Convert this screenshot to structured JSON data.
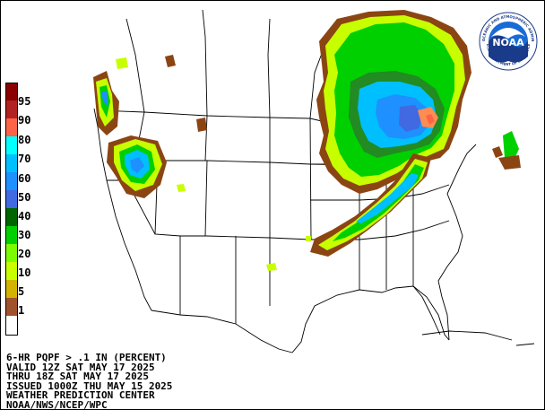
{
  "legend": {
    "items": [
      {
        "label": "95",
        "color": "#8b0000"
      },
      {
        "label": "",
        "color": "#b22222"
      },
      {
        "label": "90",
        "color": "#ff6347"
      },
      {
        "label": "",
        "color": "#ffa07a"
      },
      {
        "label": "80",
        "color": "#00ffff"
      },
      {
        "label": "",
        "color": "#00bfff"
      },
      {
        "label": "60",
        "color": "#1e90ff"
      },
      {
        "label": "50",
        "color": "#4169e1"
      },
      {
        "label": "",
        "color": "#1a5fa8"
      },
      {
        "label": "40",
        "color": "#006400"
      },
      {
        "label": "",
        "color": "#228b22"
      },
      {
        "label": "30",
        "color": "#32cd32"
      },
      {
        "label": "20",
        "color": "#00d000"
      },
      {
        "label": "",
        "color": "#7cfc00"
      },
      {
        "label": "10",
        "color": "#c8ff00"
      },
      {
        "label": "",
        "color": "#ffff00"
      },
      {
        "label": "5",
        "color": "#d2b400"
      },
      {
        "label": "",
        "color": "#a0522d"
      },
      {
        "label": "1",
        "color": "#8b4513"
      },
      {
        "label": "",
        "color": "#ffffff"
      }
    ]
  },
  "caption": {
    "line1": "6-HR PQPF > .1 IN (PERCENT)",
    "line2": "VALID 12Z SAT MAY 17 2025",
    "line3": "THRU 18Z SAT MAY 17 2025",
    "line4": "ISSUED 1000Z THU MAY 15 2025",
    "line5": "WEATHER PREDICTION CENTER",
    "line6": "NOAA/NWS/NCEP/WPC"
  },
  "logo": {
    "text": "NOAA",
    "ring_text": "NATIONAL OCEANIC AND ATMOSPHERIC ADMINISTRATION",
    "ring_text_bottom": "U.S. DEPARTMENT OF COMMERCE"
  },
  "colors": {
    "brown": "#8b4513",
    "yellow_green": "#c8ff00",
    "green": "#00d000",
    "dark_green": "#228b22",
    "light_blue": "#00bfff",
    "blue": "#1e90ff",
    "orange": "#ff8c50"
  }
}
